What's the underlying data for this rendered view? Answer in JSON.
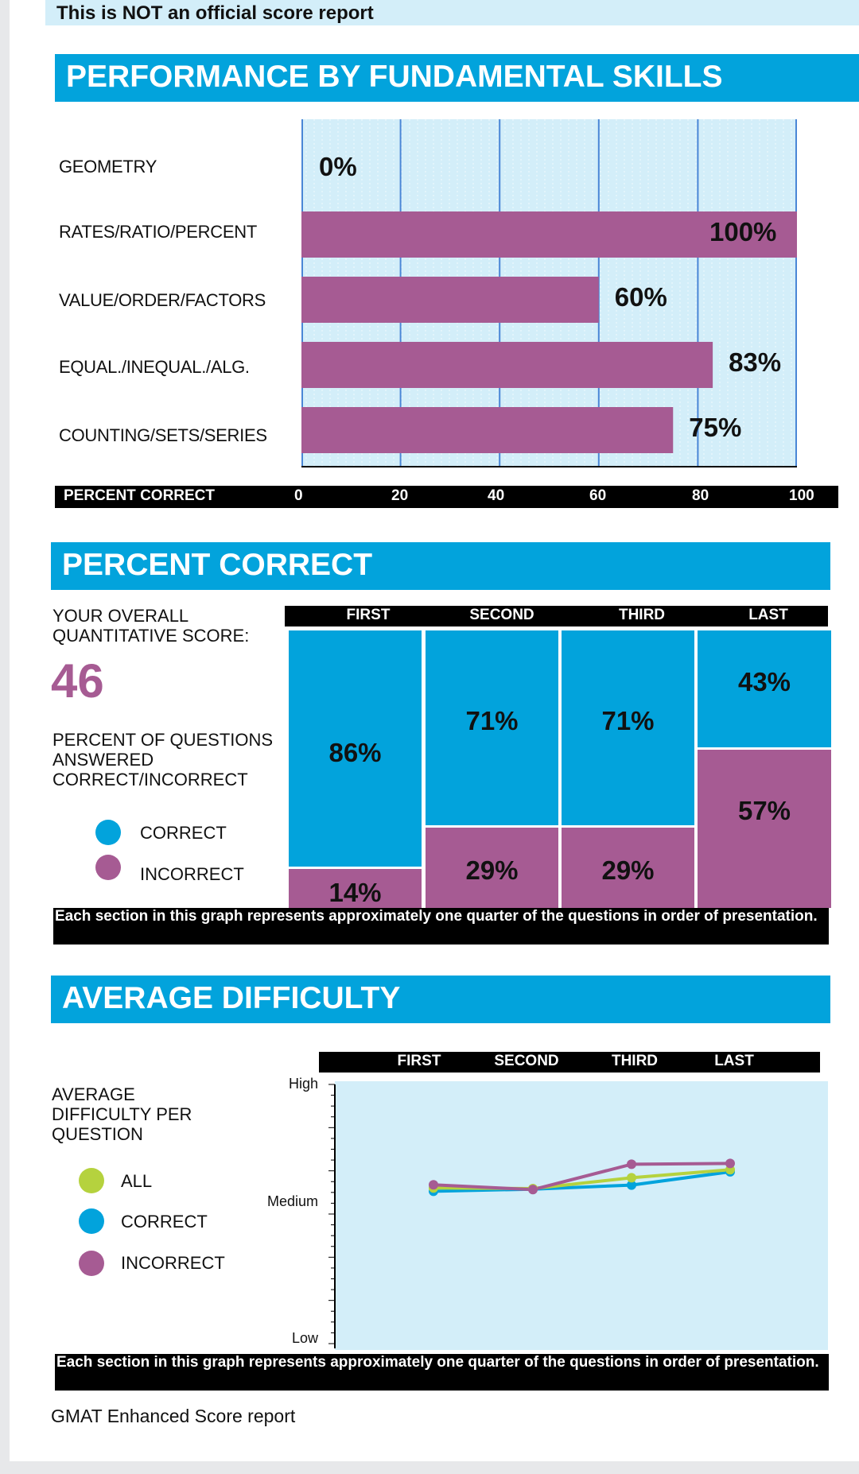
{
  "notice": "This is NOT an official score report",
  "colors": {
    "blue": "#02a3dc",
    "purple": "#a65b93",
    "green": "#b5d23e",
    "light_bg": "#d3eef9",
    "black": "#000000"
  },
  "skills_section": {
    "title": "PERFORMANCE BY FUNDAMENTAL SKILLS",
    "axis_label": "PERCENT CORRECT"
  },
  "percent_section": {
    "title": "PERCENT CORRECT",
    "score_label_line1": "YOUR OVERALL",
    "score_label_line2": "QUANTITATIVE SCORE:",
    "score": "46",
    "desc_line1": "PERCENT OF QUESTIONS",
    "desc_line2": "ANSWERED",
    "desc_line3": "CORRECT/INCORRECT",
    "legend_correct": "CORRECT",
    "legend_incorrect": "INCORRECT",
    "footnote": "Each section in this graph represents approximately one quarter of the questions in order of presentation."
  },
  "difficulty_section": {
    "title": "AVERAGE DIFFICULTY",
    "label_line1": "AVERAGE",
    "label_line2": "DIFFICULTY PER",
    "label_line3": "QUESTION",
    "legend_all": "ALL",
    "legend_correct": "CORRECT",
    "legend_incorrect": "INCORRECT",
    "footnote": "Each section in this graph represents approximately one quarter of the questions in order of presentation."
  },
  "footer": "GMAT Enhanced Score report",
  "chart_data": [
    {
      "type": "bar",
      "orientation": "horizontal",
      "title": "PERFORMANCE BY FUNDAMENTAL SKILLS",
      "xlabel": "PERCENT CORRECT",
      "xlim": [
        0,
        100
      ],
      "xticks": [
        "0",
        "20",
        "40",
        "60",
        "80",
        "100"
      ],
      "categories": [
        "GEOMETRY",
        "RATES/RATIO/PERCENT",
        "VALUE/ORDER/FACTORS",
        "EQUAL./INEQUAL./ALG.",
        "COUNTING/SETS/SERIES"
      ],
      "values": [
        0,
        100,
        60,
        83,
        75
      ],
      "labels": [
        "0%",
        "100%",
        "60%",
        "83%",
        "75%"
      ]
    },
    {
      "type": "bar",
      "stacked": true,
      "title": "PERCENT CORRECT",
      "categories": [
        "FIRST",
        "SECOND",
        "THIRD",
        "LAST"
      ],
      "series": [
        {
          "name": "CORRECT",
          "values": [
            86,
            71,
            71,
            43
          ],
          "labels": [
            "86%",
            "71%",
            "71%",
            "43%"
          ]
        },
        {
          "name": "INCORRECT",
          "values": [
            14,
            29,
            29,
            57
          ],
          "labels": [
            "14%",
            "29%",
            "29%",
            "57%"
          ]
        }
      ]
    },
    {
      "type": "line",
      "title": "AVERAGE DIFFICULTY",
      "categories": [
        "FIRST",
        "SECOND",
        "THIRD",
        "LAST"
      ],
      "yticks": [
        "High",
        "Medium",
        "Low"
      ],
      "ylim": [
        0,
        100
      ],
      "series": [
        {
          "name": "ALL",
          "values": [
            60.5,
            60.3,
            64.3,
            67.3
          ]
        },
        {
          "name": "CORRECT",
          "values": [
            59.3,
            60.1,
            61.6,
            66.5
          ]
        },
        {
          "name": "INCORRECT",
          "values": [
            61.7,
            59.9,
            69.3,
            69.6
          ]
        }
      ]
    }
  ]
}
